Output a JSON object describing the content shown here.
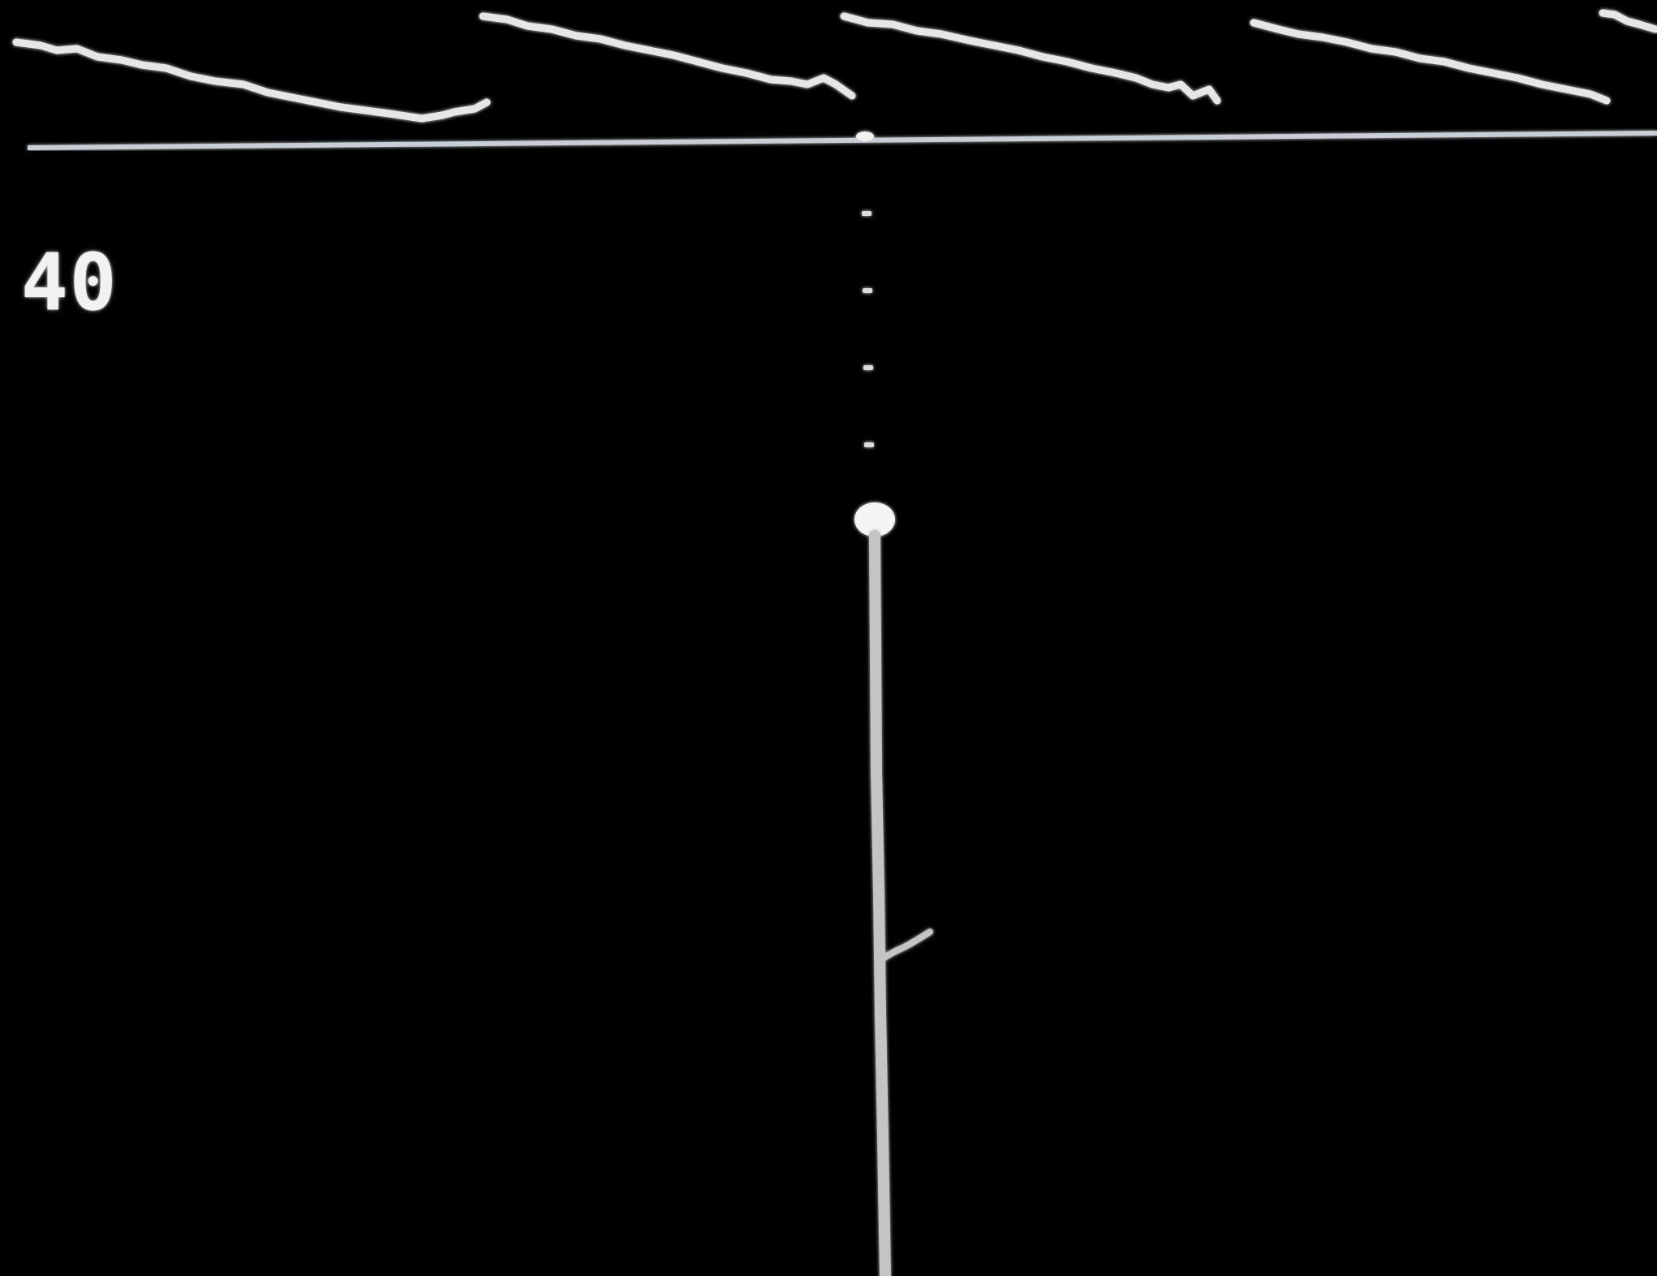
{
  "game": {
    "score": "40",
    "colors": {
      "background": "#000000",
      "foreground": "#e6e6e6",
      "horizon": "#c8ced4"
    },
    "elements": {
      "targets": "wavy-targets",
      "horizon": "horizon-line",
      "shot": "projectile",
      "shot_trail": "projectile-trail",
      "launcher": "launcher-rod"
    }
  }
}
